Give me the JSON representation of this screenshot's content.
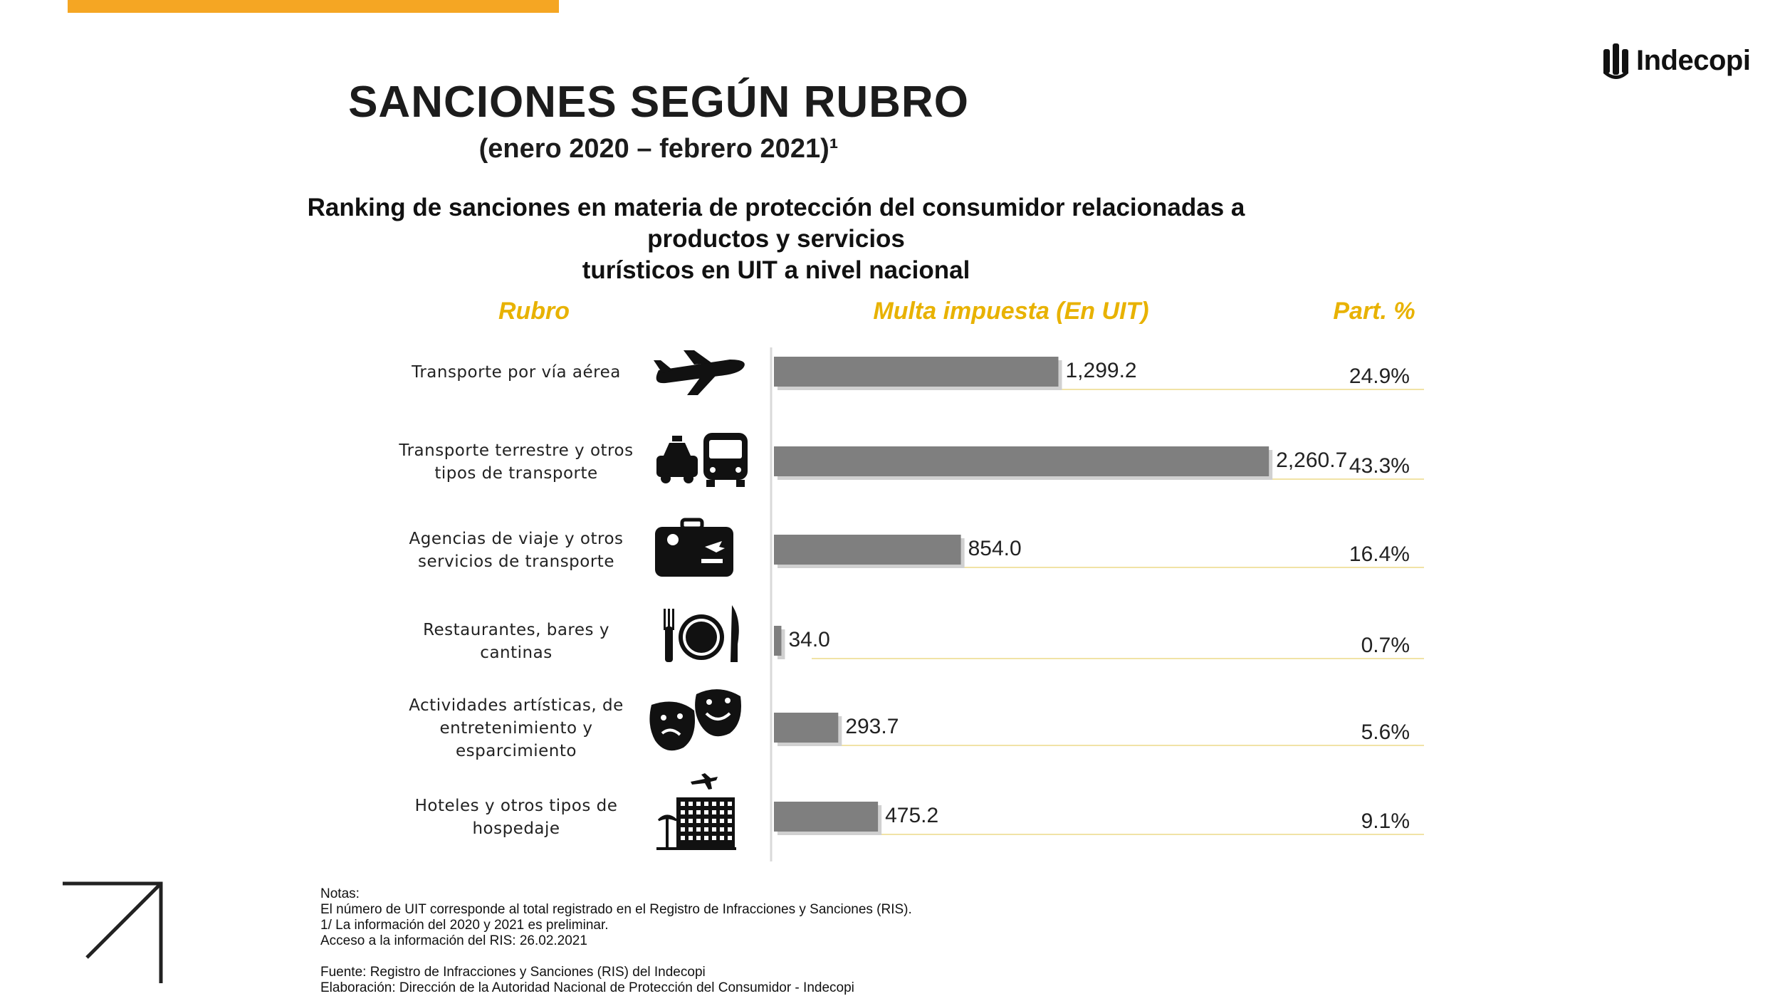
{
  "brand": {
    "logo_text": "Indecopi",
    "accent": "#f5a623"
  },
  "title": "SANCIONES SEGÚN RUBRO",
  "subtitle": "(enero 2020 – febrero 2021)¹",
  "description_line1": "Ranking de sanciones en materia de protección del consumidor relacionadas a productos y servicios",
  "description_line2": "turísticos en UIT a nivel nacional",
  "headers": {
    "rubro": "Rubro",
    "multa": "Multa impuesta (En UIT)",
    "part": "Part. %"
  },
  "chart_data": {
    "type": "bar",
    "orientation": "horizontal",
    "categories": [
      [
        "Transporte por vía aérea"
      ],
      [
        "Transporte terrestre y otros",
        "tipos de transporte"
      ],
      [
        "Agencias de viaje y otros",
        "servicios de transporte"
      ],
      [
        "Restaurantes, bares y",
        "cantinas"
      ],
      [
        "Actividades artísticas, de",
        "entretenimiento y",
        "esparcimiento"
      ],
      [
        "Hoteles y otros tipos de",
        "hospedaje"
      ]
    ],
    "icons": [
      "airplane-icon",
      "taxi-bus-icon",
      "suitcase-icon",
      "plate-cutlery-icon",
      "theater-masks-icon",
      "hotel-icon"
    ],
    "values": [
      1299.2,
      2260.7,
      854.0,
      34.0,
      293.7,
      475.2
    ],
    "value_labels": [
      "1,299.2",
      "2,260.7",
      "854.0",
      "34.0",
      "293.7",
      "475.2"
    ],
    "shares": [
      "24.9%",
      "43.3%",
      "16.4%",
      "0.7%",
      "5.6%",
      "9.1%"
    ],
    "xlim": [
      0,
      2400
    ],
    "bar_color": "#7f7f7f",
    "header_color": "#e8b200",
    "separator_color": "#f1e3a6"
  },
  "notes": [
    "Notas:",
    "El número de UIT corresponde al total registrado en el Registro de Infracciones y Sanciones (RIS).",
    "1/ La información del 2020 y 2021 es preliminar.",
    "Acceso a la información del RIS: 26.02.2021",
    "",
    "Fuente: Registro de Infracciones y Sanciones (RIS) del Indecopi",
    "Elaboración: Dirección de la Autoridad Nacional de Protección del Consumidor - Indecopi"
  ]
}
